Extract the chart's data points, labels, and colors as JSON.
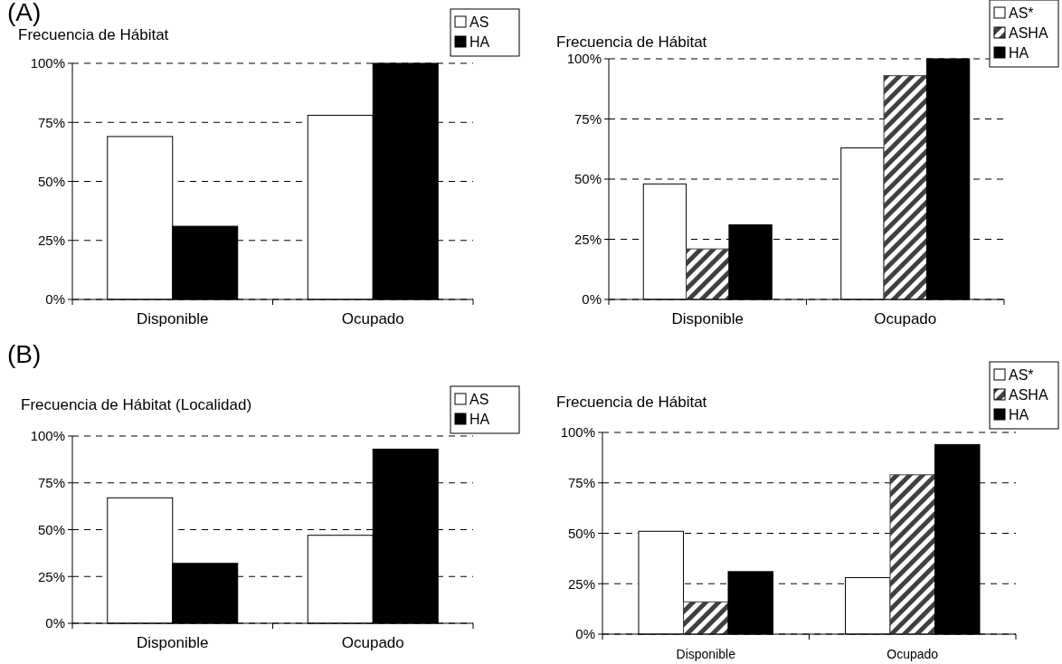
{
  "chart_data": [
    {
      "type": "bar",
      "title": "Frecuencia de Hábitat",
      "annotations": [
        "(A)"
      ],
      "categories": [
        "Disponible",
        "Ocupado"
      ],
      "series": [
        {
          "name": "AS",
          "color": "#ffffff",
          "values": [
            69,
            78
          ]
        },
        {
          "name": "HA",
          "color": "#000000",
          "values": [
            31,
            100
          ]
        }
      ],
      "ylim": [
        0,
        100
      ],
      "yticks": [
        {
          "value": 0,
          "label": "0%"
        },
        {
          "value": 25,
          "label": "25%"
        },
        {
          "value": 50,
          "label": "50%"
        },
        {
          "value": 75,
          "label": "75%"
        },
        {
          "value": 100,
          "label": "100%"
        }
      ],
      "grid": "y",
      "legend": "top right"
    },
    {
      "type": "bar",
      "title": "Frecuencia de Hábitat",
      "categories": [
        "Disponible",
        "Ocupado"
      ],
      "series": [
        {
          "name": "AS*",
          "color": "#ffffff",
          "values": [
            48,
            63
          ]
        },
        {
          "name": "ASHA",
          "color": "#404040",
          "values": [
            21,
            93
          ]
        },
        {
          "name": "HA",
          "color": "#000000",
          "values": [
            31,
            100
          ]
        }
      ],
      "ylim": [
        0,
        100
      ],
      "yticks": [
        {
          "value": 0,
          "label": "0%"
        },
        {
          "value": 25,
          "label": "25%"
        },
        {
          "value": 50,
          "label": "50%"
        },
        {
          "value": 75,
          "label": "75%"
        },
        {
          "value": 100,
          "label": "100%"
        }
      ],
      "grid": "y",
      "legend": "top right"
    },
    {
      "type": "bar",
      "title": "Frecuencia de Hábitat (Localidad)",
      "annotations": [
        "(B)"
      ],
      "categories": [
        "Disponible",
        "Ocupado"
      ],
      "series": [
        {
          "name": "AS",
          "color": "#ffffff",
          "values": [
            67,
            47
          ]
        },
        {
          "name": "HA",
          "color": "#000000",
          "values": [
            32,
            93
          ]
        }
      ],
      "ylim": [
        0,
        100
      ],
      "yticks": [
        {
          "value": 0,
          "label": "0%"
        },
        {
          "value": 25,
          "label": "25%"
        },
        {
          "value": 50,
          "label": "50%"
        },
        {
          "value": 75,
          "label": "75%"
        },
        {
          "value": 100,
          "label": "100%"
        }
      ],
      "grid": "y",
      "legend": "top right"
    },
    {
      "type": "bar",
      "title": "Frecuencia de Hábitat",
      "categories": [
        "Disponible",
        "Ocupado"
      ],
      "series": [
        {
          "name": "AS*",
          "color": "#ffffff",
          "values": [
            51,
            28
          ]
        },
        {
          "name": "ASHA",
          "color": "#404040",
          "values": [
            16,
            79
          ]
        },
        {
          "name": "HA",
          "color": "#000000",
          "values": [
            31,
            94
          ]
        }
      ],
      "ylim": [
        0,
        100
      ],
      "yticks": [
        {
          "value": 0,
          "label": "0%"
        },
        {
          "value": 25,
          "label": "25%"
        },
        {
          "value": 50,
          "label": "50%"
        },
        {
          "value": 75,
          "label": "75%"
        },
        {
          "value": 100,
          "label": "100%"
        }
      ],
      "grid": "y",
      "legend": "top right"
    }
  ]
}
